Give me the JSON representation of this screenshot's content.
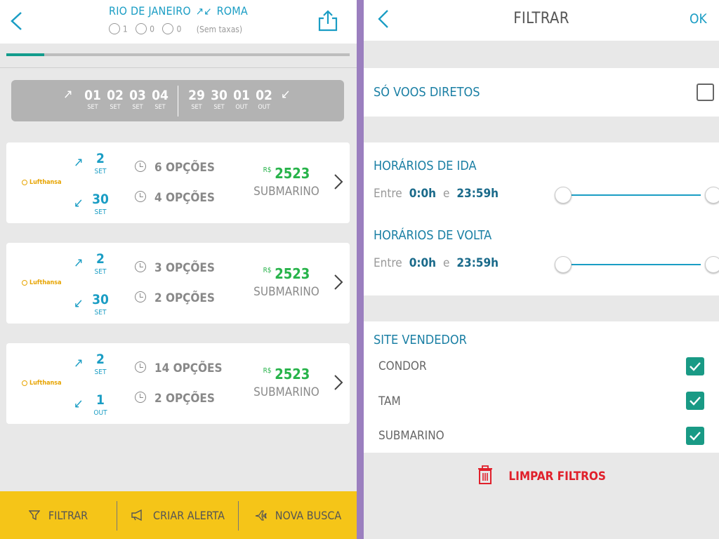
{
  "header": {
    "origin": "RIO DE JANEIRO",
    "destination": "ROMA",
    "route_arrows": "↗↙",
    "adults": "1",
    "children": "0",
    "infants": "0",
    "taxes_note": "(Sem taxas)"
  },
  "progress": {
    "fraction": 0.11
  },
  "dates": {
    "outbound": [
      {
        "day": "01",
        "month": "SET"
      },
      {
        "day": "02",
        "month": "SET"
      },
      {
        "day": "03",
        "month": "SET"
      },
      {
        "day": "04",
        "month": "SET"
      }
    ],
    "inbound": [
      {
        "day": "29",
        "month": "SET"
      },
      {
        "day": "30",
        "month": "SET"
      },
      {
        "day": "01",
        "month": "OUT"
      },
      {
        "day": "02",
        "month": "OUT"
      }
    ]
  },
  "results": [
    {
      "airline": "Lufthansa",
      "out_day": "2",
      "out_month": "SET",
      "ret_day": "30",
      "ret_month": "SET",
      "out_options": "6 OPÇÕES",
      "ret_options": "4 OPÇÕES",
      "currency": "R$",
      "price": "2523",
      "site": "SUBMARINO"
    },
    {
      "airline": "Lufthansa",
      "out_day": "2",
      "out_month": "SET",
      "ret_day": "30",
      "ret_month": "SET",
      "out_options": "3 OPÇÕES",
      "ret_options": "2 OPÇÕES",
      "currency": "R$",
      "price": "2523",
      "site": "SUBMARINO"
    },
    {
      "airline": "Lufthansa",
      "out_day": "2",
      "out_month": "SET",
      "ret_day": "1",
      "ret_month": "OUT",
      "out_options": "14 OPÇÕES",
      "ret_options": "2 OPÇÕES",
      "currency": "R$",
      "price": "2523",
      "site": "SUBMARINO"
    }
  ],
  "bottom_bar": {
    "filter_label": "FILTRAR",
    "alert_label": "CRIAR ALERTA",
    "new_search_label": "NOVA BUSCA"
  },
  "filter": {
    "title": "FILTRAR",
    "ok_label": "OK",
    "direct_only_label": "SÓ VOOS DIRETOS",
    "direct_only_checked": false,
    "outbound_times_label": "HORÁRIOS DE IDA",
    "return_times_label": "HORÁRIOS DE VOLTA",
    "between_label": "Entre",
    "and_label": "e",
    "outbound_from": "0:0h",
    "outbound_to": "23:59h",
    "return_from": "0:0h",
    "return_to": "23:59h",
    "vendor_section_label": "SITE VENDEDOR",
    "vendors": [
      {
        "name": "CONDOR",
        "checked": true
      },
      {
        "name": "TAM",
        "checked": true
      },
      {
        "name": "SUBMARINO",
        "checked": true
      }
    ],
    "clear_label": "LIMPAR FILTROS"
  },
  "colors": {
    "accent_blue": "#1a9dc4",
    "price_green": "#27b34a",
    "bottom_bar_yellow": "#f5c518",
    "checkbox_teal": "#199a85",
    "clear_red": "#e0202b",
    "divider_purple": "#9b7fbf"
  }
}
